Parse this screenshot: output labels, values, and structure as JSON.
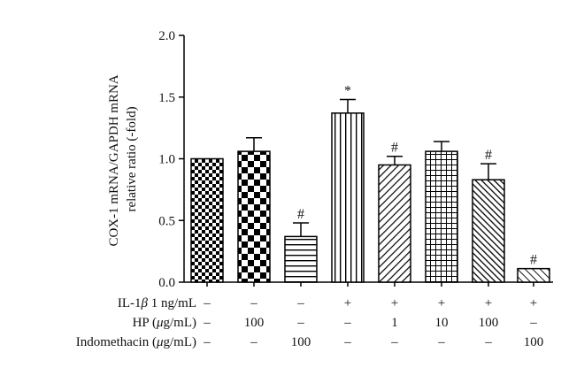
{
  "chart_data": {
    "type": "bar",
    "title": "",
    "xlabel": "",
    "ylabel": "COX-1 mRNA/GAPDH mRNA relative ratio (-fold)",
    "ylabel_lines": [
      "COX-1 mRNA/GAPDH mRNA",
      "relative ratio (-fold)"
    ],
    "ylim": [
      0,
      2.0
    ],
    "yticks": [
      "0.0",
      "0.5",
      "1.0",
      "1.5",
      "2.0"
    ],
    "grid": false,
    "legend": "none",
    "bar_color": "#000000",
    "bars": [
      {
        "value": 1.0,
        "error": 0.0,
        "pattern": "checker-small",
        "mark": ""
      },
      {
        "value": 1.06,
        "error": 0.11,
        "pattern": "checker-large",
        "mark": ""
      },
      {
        "value": 0.37,
        "error": 0.11,
        "pattern": "horizontal-lines",
        "mark": "#"
      },
      {
        "value": 1.37,
        "error": 0.11,
        "pattern": "vertical-lines",
        "mark": "*"
      },
      {
        "value": 0.95,
        "error": 0.07,
        "pattern": "diagonal-lines",
        "mark": "#"
      },
      {
        "value": 1.06,
        "error": 0.08,
        "pattern": "grid",
        "mark": ""
      },
      {
        "value": 0.83,
        "error": 0.13,
        "pattern": "diagonal-dense",
        "mark": "#"
      },
      {
        "value": 0.11,
        "error": 0.0,
        "pattern": "diagonal-light",
        "mark": "#"
      }
    ],
    "conditions": [
      {
        "label_parts": [
          {
            "t": "IL-1"
          },
          {
            "t": "β",
            "italic": true
          },
          {
            "t": " 1 ng/mL"
          }
        ],
        "values": [
          "–",
          "–",
          "–",
          "+",
          "+",
          "+",
          "+",
          "+"
        ]
      },
      {
        "label_parts": [
          {
            "t": "HP ("
          },
          {
            "t": "μ",
            "italic": true
          },
          {
            "t": "g/mL)"
          }
        ],
        "values": [
          "–",
          "100",
          "–",
          "–",
          "1",
          "10",
          "100",
          "–"
        ]
      },
      {
        "label_parts": [
          {
            "t": "Indomethacin ("
          },
          {
            "t": "μ",
            "italic": true
          },
          {
            "t": "g/mL)"
          }
        ],
        "values": [
          "–",
          "–",
          "100",
          "–",
          "–",
          "–",
          "–",
          "100"
        ]
      }
    ]
  }
}
